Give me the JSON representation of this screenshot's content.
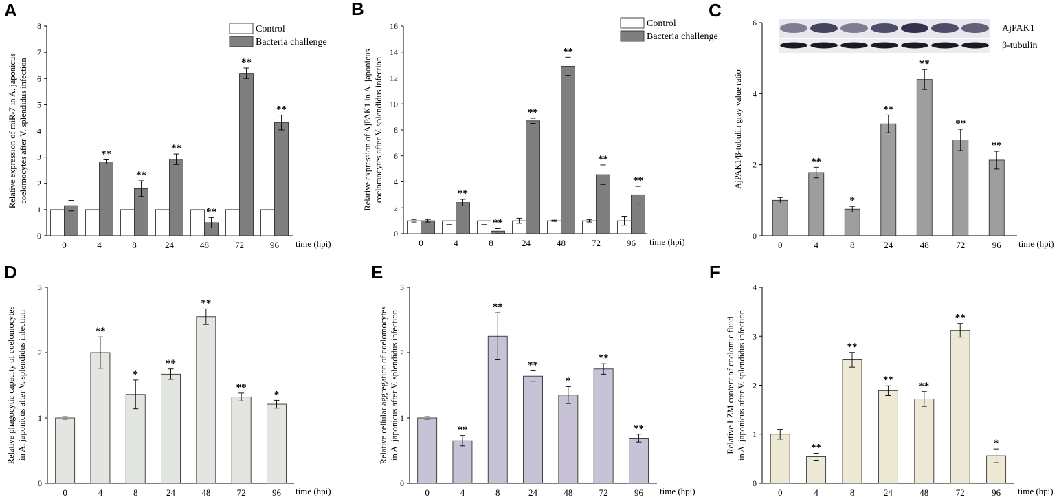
{
  "panels": [
    {
      "letter": "A",
      "type": "bar",
      "categories": [
        "0",
        "4",
        "8",
        "24",
        "48",
        "72",
        "96"
      ],
      "xunit": "time (hpi)",
      "ylabel": [
        "Relative expression of miR-7 in A. japonicus",
        "coelomocytes after V. splendidus infection"
      ],
      "ylim": [
        0,
        8
      ],
      "yticks": [
        "0",
        "1",
        "2",
        "3",
        "4",
        "5",
        "6",
        "7",
        "8"
      ],
      "series": [
        {
          "name": "Control",
          "color": "#ffffff",
          "values": [
            1,
            1,
            1,
            1,
            1,
            1,
            1
          ],
          "errors": [
            0,
            0,
            0,
            0,
            0,
            0,
            0
          ],
          "stars": [
            "",
            "",
            "",
            "",
            "",
            "",
            ""
          ]
        },
        {
          "name": "Bacteria challenge",
          "color": "#7f7f7f",
          "values": [
            1.15,
            2.82,
            1.8,
            2.92,
            0.5,
            6.2,
            4.32
          ],
          "errors": [
            0.2,
            0.08,
            0.3,
            0.2,
            0.2,
            0.2,
            0.28
          ],
          "stars": [
            "",
            "**",
            "**",
            "**",
            "**",
            "**",
            "**"
          ]
        }
      ],
      "legend": [
        "Control",
        "Bacteria challenge"
      ]
    },
    {
      "letter": "B",
      "type": "bar",
      "categories": [
        "0",
        "4",
        "8",
        "24",
        "48",
        "72",
        "96"
      ],
      "xunit": "time (hpi)",
      "ylabel": [
        "Relative expression of AjPAK1 in A. japonicus",
        "coelomocytes after V. splendidus infection"
      ],
      "ylim": [
        0,
        16
      ],
      "yticks": [
        "0",
        "2",
        "4",
        "6",
        "8",
        "10",
        "12",
        "14",
        "16"
      ],
      "series": [
        {
          "name": "Control",
          "color": "#ffffff",
          "values": [
            1,
            1,
            1,
            1,
            1,
            1,
            1
          ],
          "errors": [
            0.1,
            0.3,
            0.3,
            0.2,
            0.05,
            0.1,
            0.35
          ],
          "stars": [
            "",
            "",
            "",
            "",
            "",
            "",
            ""
          ]
        },
        {
          "name": "Bacteria challenge",
          "color": "#7f7f7f",
          "values": [
            1,
            2.4,
            0.2,
            8.7,
            12.9,
            4.55,
            3.0
          ],
          "errors": [
            0.1,
            0.25,
            0.2,
            0.2,
            0.7,
            0.75,
            0.65
          ],
          "stars": [
            "",
            "**",
            "**",
            "**",
            "**",
            "**",
            "**"
          ]
        }
      ],
      "legend": [
        "Control",
        "Bacteria challenge"
      ]
    },
    {
      "letter": "C",
      "type": "bar",
      "categories": [
        "0",
        "4",
        "8",
        "24",
        "48",
        "72",
        "96"
      ],
      "xunit": "time (hpi)",
      "ylabel": [
        "AjPAK1/β-tubulin gray value ratio"
      ],
      "ylim": [
        0,
        6
      ],
      "yticks": [
        "0",
        "2",
        "4",
        "6"
      ],
      "series": [
        {
          "name": "AjPAK1/β-tubulin",
          "color": "#9e9e9e",
          "values": [
            1.0,
            1.78,
            0.75,
            3.15,
            4.4,
            2.7,
            2.13
          ],
          "errors": [
            0.08,
            0.15,
            0.08,
            0.25,
            0.28,
            0.3,
            0.25
          ],
          "stars": [
            "",
            "**",
            "*",
            "**",
            "**",
            "**",
            "**"
          ]
        }
      ],
      "blot_labels": [
        "AjPAK1",
        "β-tubulin"
      ]
    },
    {
      "letter": "D",
      "type": "bar",
      "categories": [
        "0",
        "4",
        "8",
        "24",
        "48",
        "72",
        "96"
      ],
      "xunit": "time (hpi)",
      "ylabel": [
        "Relative phagocytic capacity of coelomocytes",
        "in A. japonicus after V. splendidus infection"
      ],
      "ylim": [
        0,
        3
      ],
      "yticks": [
        "0",
        "1",
        "2",
        "3"
      ],
      "series": [
        {
          "name": "Bacteria challenge",
          "color": "#e3e6e0",
          "values": [
            1.0,
            2.0,
            1.36,
            1.67,
            2.55,
            1.32,
            1.21
          ],
          "errors": [
            0.02,
            0.24,
            0.22,
            0.08,
            0.12,
            0.06,
            0.06
          ],
          "stars": [
            "",
            "**",
            "*",
            "**",
            "**",
            "**",
            "*"
          ]
        }
      ]
    },
    {
      "letter": "E",
      "type": "bar",
      "categories": [
        "0",
        "4",
        "8",
        "24",
        "48",
        "72",
        "96"
      ],
      "xunit": "time (hpi)",
      "ylabel": [
        "Relative cellular aggregation of  coelomocytes",
        "in A. japonicus after V. splendidus infection"
      ],
      "ylim": [
        0,
        3
      ],
      "yticks": [
        "0",
        "1",
        "2",
        "3"
      ],
      "series": [
        {
          "name": "Bacteria challenge",
          "color": "#c8c2d6",
          "values": [
            1.0,
            0.65,
            2.25,
            1.64,
            1.35,
            1.75,
            0.69
          ],
          "errors": [
            0.02,
            0.08,
            0.36,
            0.08,
            0.13,
            0.08,
            0.06
          ],
          "stars": [
            "",
            "**",
            "**",
            "**",
            "*",
            "**",
            "**"
          ]
        }
      ]
    },
    {
      "letter": "F",
      "type": "bar",
      "categories": [
        "0",
        "4",
        "8",
        "24",
        "48",
        "72",
        "96"
      ],
      "xunit": "time (hpi)",
      "ylabel": [
        "Relative LZM content of coelomic fluid",
        "in A. japonicus after V. splendidus infection"
      ],
      "ylim": [
        0,
        4
      ],
      "yticks": [
        "0",
        "1",
        "2",
        "3",
        "4"
      ],
      "series": [
        {
          "name": "Bacteria challenge",
          "color": "#ede9d4",
          "values": [
            1.0,
            0.54,
            2.52,
            1.89,
            1.72,
            3.12,
            0.56
          ],
          "errors": [
            0.1,
            0.07,
            0.15,
            0.1,
            0.15,
            0.14,
            0.14
          ],
          "stars": [
            "",
            "**",
            "**",
            "**",
            "**",
            "**",
            "*"
          ]
        }
      ]
    }
  ]
}
